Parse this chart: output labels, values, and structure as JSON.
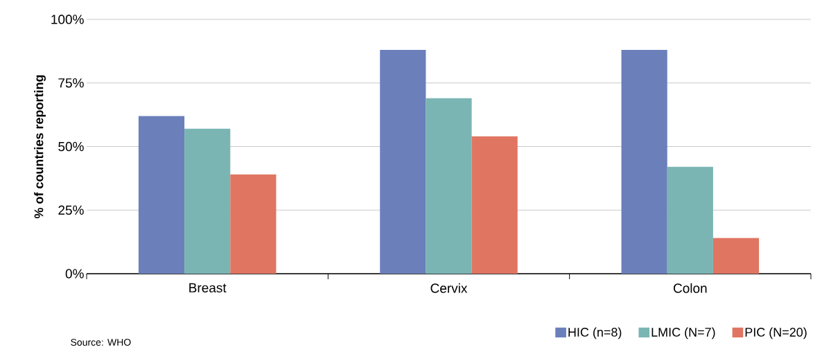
{
  "chart_data": {
    "type": "bar",
    "ylabel": "% of countries reporting",
    "categories": [
      "Breast",
      "Cervix",
      "Colon"
    ],
    "series": [
      {
        "name": "HIC (n=8)",
        "color": "#6b7fbb",
        "values": [
          62,
          88,
          88
        ]
      },
      {
        "name": "LMIC (N=7)",
        "color": "#7ab5b4",
        "values": [
          57,
          69,
          42
        ]
      },
      {
        "name": "PIC (N=20)",
        "color": "#e07562",
        "values": [
          39,
          54,
          14
        ]
      }
    ],
    "ylim": [
      0,
      100
    ],
    "yticks": [
      {
        "value": 0,
        "label": "0%"
      },
      {
        "value": 25,
        "label": "25%"
      },
      {
        "value": 50,
        "label": "50%"
      },
      {
        "value": 75,
        "label": "75%"
      },
      {
        "value": 100,
        "label": "100%"
      }
    ],
    "grid": "y",
    "legend": "bottom right",
    "annotations": [
      "Source: WHO"
    ]
  }
}
